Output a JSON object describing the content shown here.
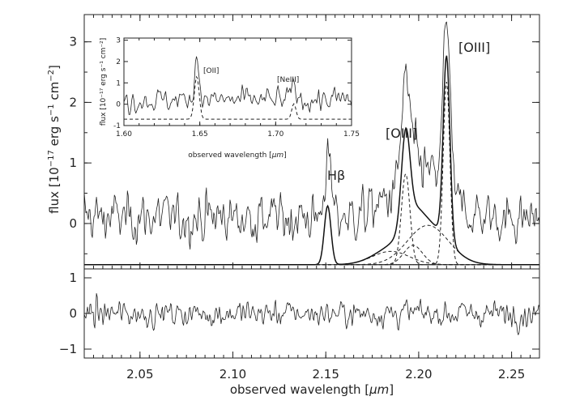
{
  "chart_data": {
    "type": "line",
    "xlabel_pre": "observed wavelength [",
    "xlabel_unit": "μm",
    "xlabel_post": "]",
    "ylabel_main": "flux  [10",
    "ylabel_sup1": "−17",
    "ylabel_mid": " erg s",
    "ylabel_sup2": "−1",
    "ylabel_mid2": " cm",
    "ylabel_sup3": "−2",
    "ylabel_end": "]",
    "xlim": [
      2.02,
      2.265
    ],
    "main_ylim": [
      -0.75,
      3.45
    ],
    "resid_ylim": [
      -1.25,
      1.25
    ],
    "x_ticks": [
      2.05,
      2.1,
      2.15,
      2.2,
      2.25
    ],
    "x_tick_labels": [
      "2.05",
      "2.10",
      "2.15",
      "2.20",
      "2.25"
    ],
    "main_y_ticks": [
      0,
      1,
      2,
      3
    ],
    "main_y_tick_labels": [
      "0",
      "1",
      "2",
      "3"
    ],
    "resid_y_ticks": [
      -1,
      0,
      1
    ],
    "resid_y_tick_labels": [
      "−1",
      "0",
      "1"
    ],
    "baseline": -0.68,
    "continuum_level": 0.1,
    "noise_sigma": 0.22,
    "components": [
      {
        "name": "Hβ",
        "center": 2.151,
        "amp": 0.97,
        "sigma": 0.0018
      },
      {
        "name": "[OIII] 4959 narrow",
        "center": 2.193,
        "amp": 1.5,
        "sigma": 0.0023
      },
      {
        "name": "[OIII] 5007 narrow",
        "center": 2.215,
        "amp": 3.02,
        "sigma": 0.0018
      },
      {
        "name": "broad wing 1",
        "center": 2.185,
        "amp": 0.22,
        "sigma": 0.01
      },
      {
        "name": "broad wing 2",
        "center": 2.205,
        "amp": 0.65,
        "sigma": 0.011
      },
      {
        "name": "broad wing 3",
        "center": 2.197,
        "amp": 0.32,
        "sigma": 0.005
      }
    ],
    "annotations": [
      {
        "text": "Hβ",
        "x": 2.152,
        "y": 1.0
      },
      {
        "text": "[OIII]",
        "x": 2.193,
        "y": 1.55
      },
      {
        "text": "[OIII]",
        "x": 2.218,
        "y": 3.2
      }
    ],
    "inset": {
      "xlabel_pre": "observed wavelength [",
      "xlabel_unit": "μm",
      "xlabel_post": "]",
      "ylabel": "flux [10⁻¹⁷ erg s⁻¹ cm⁻²]",
      "xlim": [
        1.6,
        1.75
      ],
      "ylim": [
        -1.0,
        3.1
      ],
      "x_ticks": [
        1.6,
        1.65,
        1.7,
        1.75
      ],
      "x_tick_labels": [
        "1.60",
        "1.65",
        "1.70",
        "1.75"
      ],
      "y_ticks": [
        -1,
        0,
        1,
        2,
        3
      ],
      "y_tick_labels": [
        "-1",
        "0",
        "1",
        "2",
        "3"
      ],
      "baseline": -0.7,
      "continuum_level": 0.2,
      "noise_sigma": 0.3,
      "components": [
        {
          "name": "[OII]",
          "center": 1.648,
          "amp": 2.0,
          "sigma": 0.0016
        },
        {
          "name": "[NeIII]",
          "center": 1.712,
          "amp": 0.72,
          "sigma": 0.0014
        }
      ],
      "annotations": [
        {
          "text": "[OII]",
          "x": 1.654,
          "y": 2.45
        },
        {
          "text": "[NeIII]",
          "x": 1.712,
          "y": 1.75
        }
      ]
    }
  }
}
